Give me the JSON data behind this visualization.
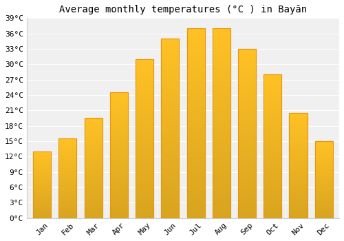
{
  "months": [
    "Jan",
    "Feb",
    "Mar",
    "Apr",
    "May",
    "Jun",
    "Jul",
    "Aug",
    "Sep",
    "Oct",
    "Nov",
    "Dec"
  ],
  "temperatures": [
    13.0,
    15.5,
    19.5,
    24.5,
    31.0,
    35.0,
    37.0,
    37.0,
    33.0,
    28.0,
    20.5,
    15.0
  ],
  "bar_color_face": "#FFC125",
  "bar_color_edge": "#E8960A",
  "title": "Average monthly temperatures (°C ) in Bayān",
  "ylim": [
    0,
    39
  ],
  "yticks": [
    0,
    3,
    6,
    9,
    12,
    15,
    18,
    21,
    24,
    27,
    30,
    33,
    36,
    39
  ],
  "ytick_labels": [
    "0°C",
    "3°C",
    "6°C",
    "9°C",
    "12°C",
    "15°C",
    "18°C",
    "21°C",
    "24°C",
    "27°C",
    "30°C",
    "33°C",
    "36°C",
    "39°C"
  ],
  "background_color": "#ffffff",
  "plot_bg_color": "#f0f0f0",
  "grid_color": "#ffffff",
  "title_fontsize": 10,
  "tick_fontsize": 8
}
